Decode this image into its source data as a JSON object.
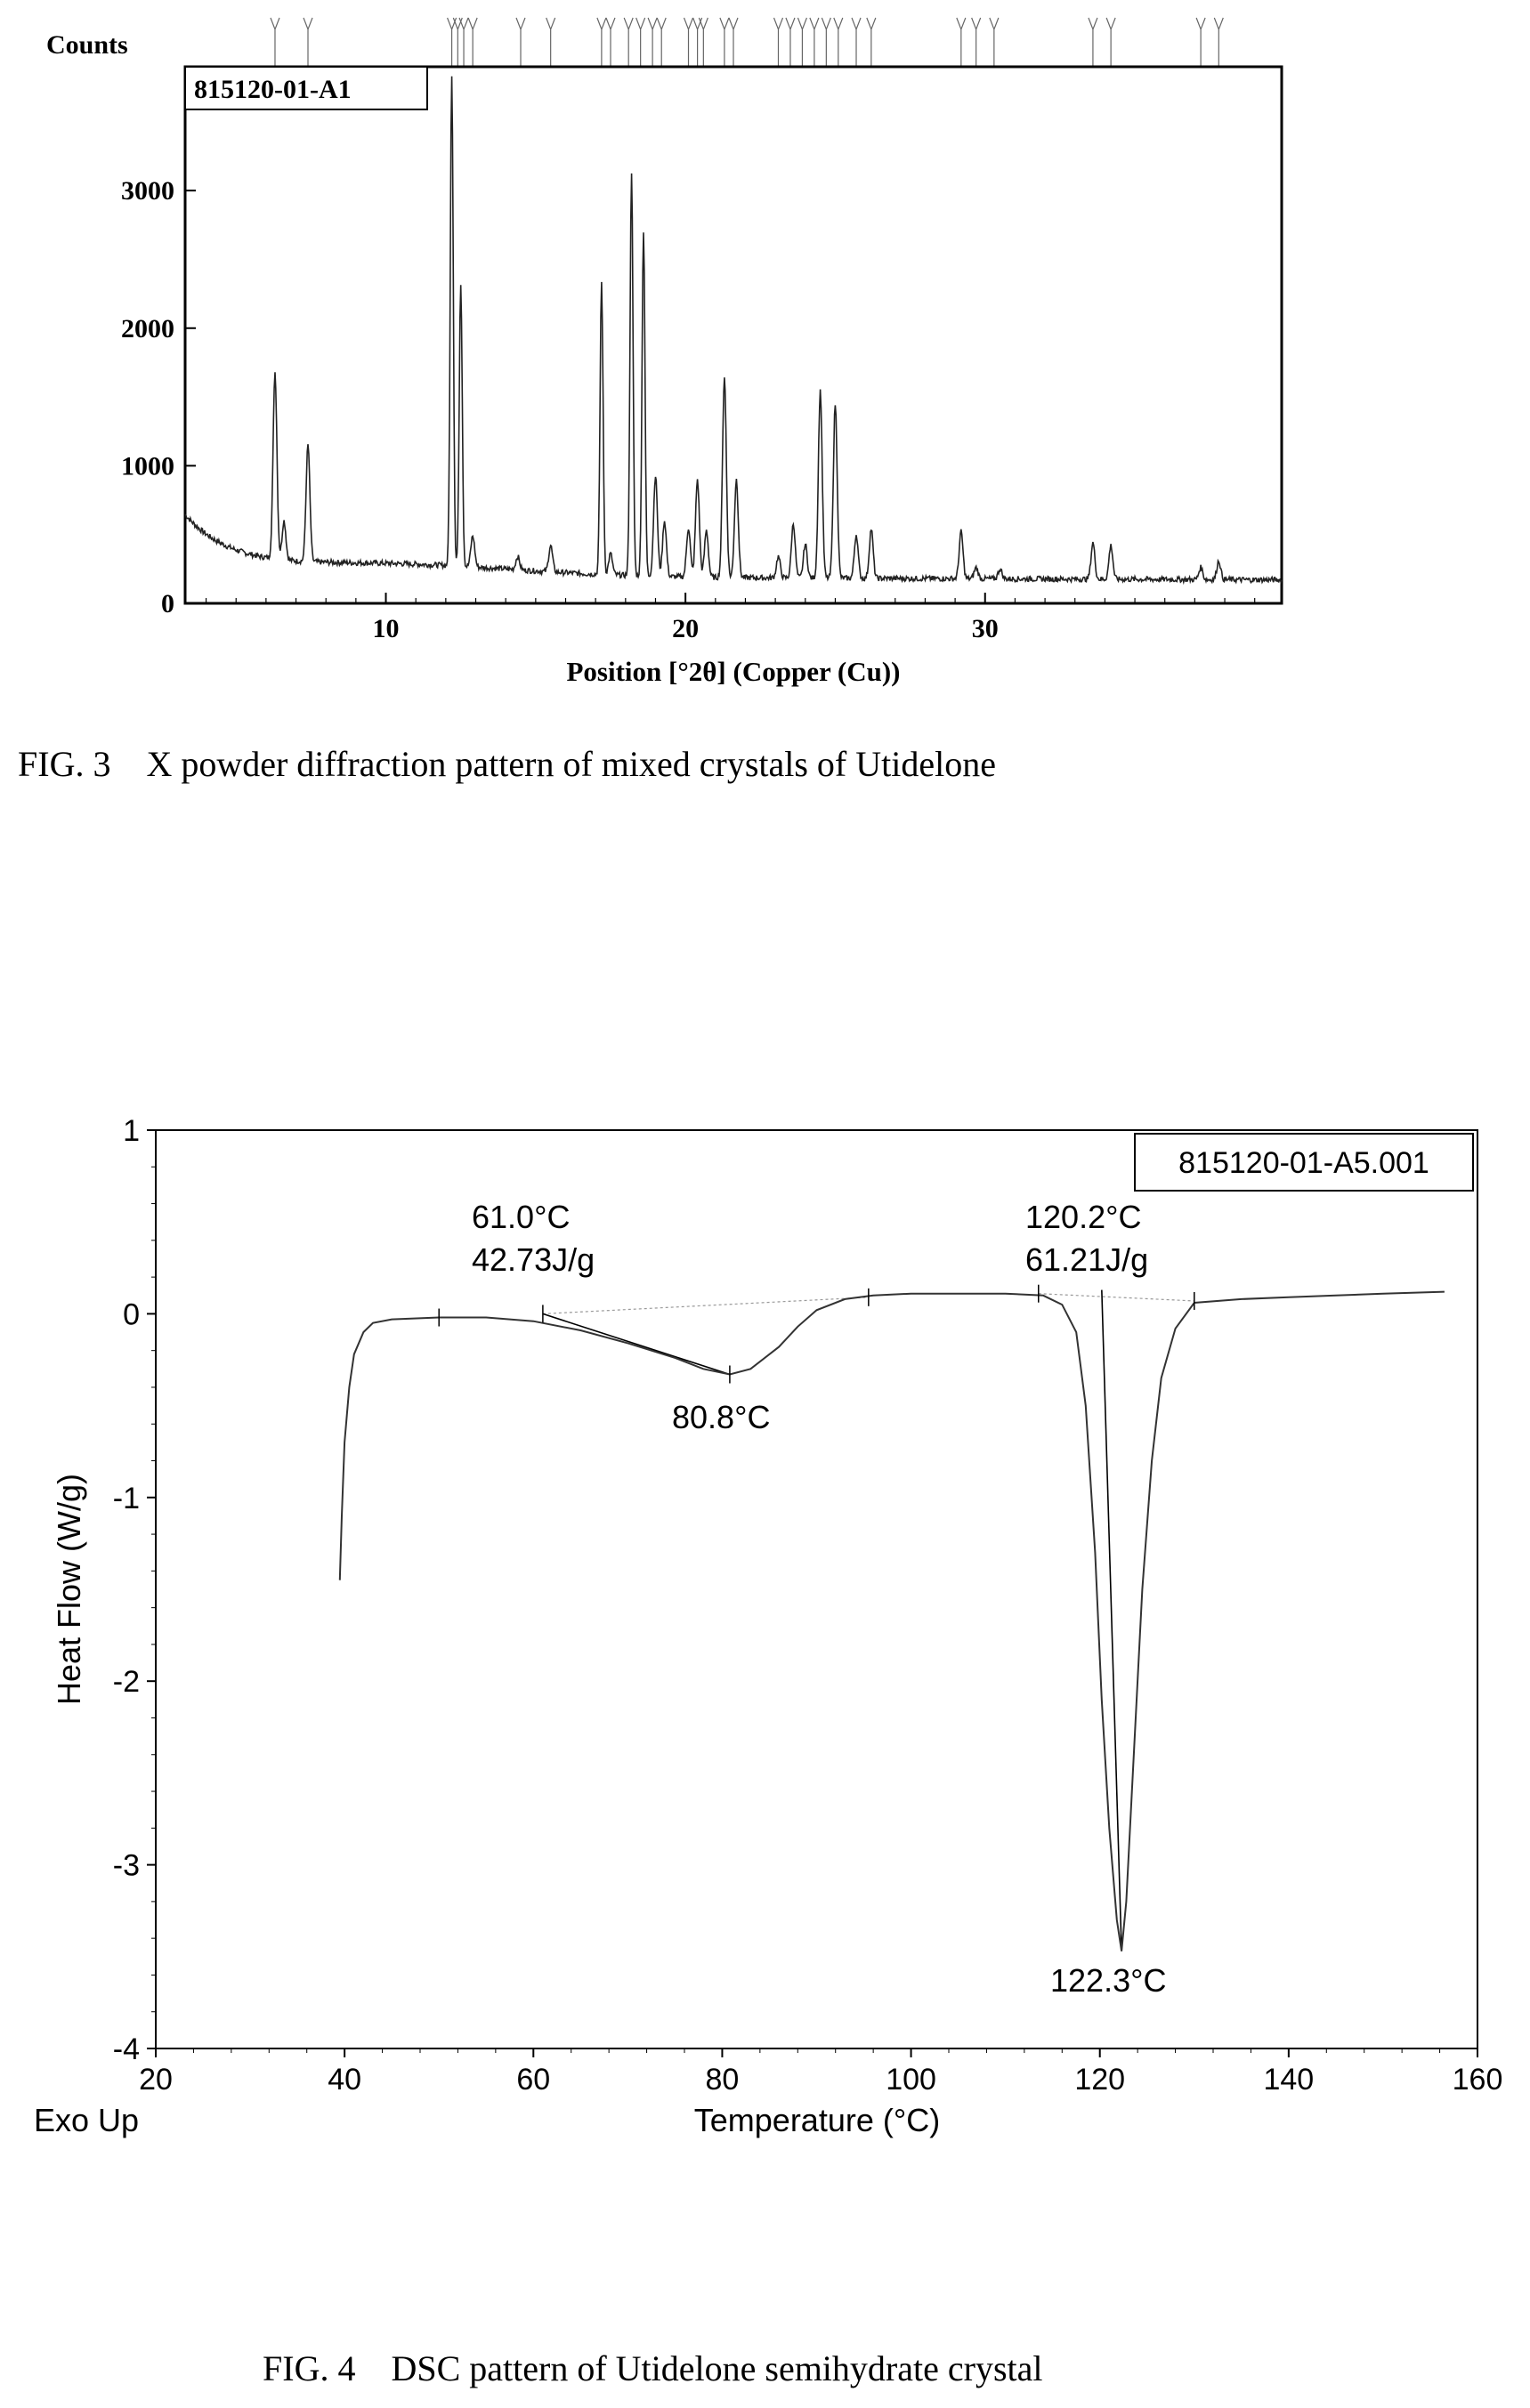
{
  "figure3": {
    "caption": "FIG. 3    X powder diffraction pattern of mixed crystals of Utidelone",
    "chart_data": {
      "type": "line",
      "ylabel": "Counts",
      "xlabel": "Position [°2θ] (Copper (Cu))",
      "sample_label": "815120-01-A1",
      "xlim": [
        3.3,
        39.9
      ],
      "ylim": [
        0,
        3900
      ],
      "xticks": [
        10,
        20,
        30
      ],
      "yticks": [
        0,
        1000,
        2000,
        3000
      ],
      "peaks": [
        {
          "x": 6.3,
          "y": 1680
        },
        {
          "x": 6.6,
          "y": 600
        },
        {
          "x": 7.4,
          "y": 1150
        },
        {
          "x": 12.2,
          "y": 3850
        },
        {
          "x": 12.5,
          "y": 2330
        },
        {
          "x": 12.9,
          "y": 490
        },
        {
          "x": 14.4,
          "y": 340
        },
        {
          "x": 15.5,
          "y": 420
        },
        {
          "x": 17.2,
          "y": 2330
        },
        {
          "x": 17.5,
          "y": 360
        },
        {
          "x": 18.2,
          "y": 3140
        },
        {
          "x": 18.6,
          "y": 2710
        },
        {
          "x": 19.0,
          "y": 930
        },
        {
          "x": 19.3,
          "y": 600
        },
        {
          "x": 20.1,
          "y": 550
        },
        {
          "x": 20.4,
          "y": 900
        },
        {
          "x": 20.7,
          "y": 530
        },
        {
          "x": 21.3,
          "y": 1650
        },
        {
          "x": 21.7,
          "y": 900
        },
        {
          "x": 23.1,
          "y": 340
        },
        {
          "x": 23.6,
          "y": 580
        },
        {
          "x": 24.0,
          "y": 430
        },
        {
          "x": 24.5,
          "y": 1540
        },
        {
          "x": 25.0,
          "y": 1450
        },
        {
          "x": 25.7,
          "y": 500
        },
        {
          "x": 26.2,
          "y": 540
        },
        {
          "x": 29.2,
          "y": 520
        },
        {
          "x": 29.7,
          "y": 260
        },
        {
          "x": 30.5,
          "y": 250
        },
        {
          "x": 33.6,
          "y": 440
        },
        {
          "x": 34.2,
          "y": 420
        },
        {
          "x": 37.2,
          "y": 260
        },
        {
          "x": 37.8,
          "y": 310
        }
      ],
      "reference_markers": [
        6.3,
        7.4,
        12.2,
        12.4,
        12.6,
        12.9,
        14.5,
        15.5,
        17.2,
        17.5,
        18.1,
        18.5,
        18.9,
        19.2,
        20.1,
        20.4,
        20.6,
        21.3,
        21.6,
        23.1,
        23.5,
        23.9,
        24.3,
        24.7,
        25.1,
        25.7,
        26.2,
        29.2,
        29.7,
        30.3,
        33.6,
        34.2,
        37.2,
        37.8
      ]
    }
  },
  "figure4": {
    "caption": "FIG. 4    DSC pattern of Utidelone semihydrate crystal",
    "chart_data": {
      "type": "line",
      "ylabel": "Heat Flow (W/g)",
      "xlabel": "Temperature (°C)",
      "corner_label": "Exo Up",
      "sample_label": "815120-01-A5.001",
      "xlim": [
        20,
        160
      ],
      "ylim": [
        -4,
        1
      ],
      "xticks": [
        20,
        40,
        60,
        80,
        100,
        120,
        140,
        160
      ],
      "yticks": [
        1,
        0,
        -1,
        -2,
        -3,
        -4
      ],
      "series": [
        {
          "x": [
            39.5,
            39.7,
            40.0,
            40.5,
            41.0,
            42.0,
            43.0,
            45.0,
            50.0,
            55.0,
            60.0,
            65.0,
            70.0,
            75.0,
            78.0,
            80.8,
            83.0,
            86.0,
            88.0,
            90.0,
            93.0,
            96.0,
            100.0,
            105.0,
            110.0,
            114.0,
            116.0,
            117.5,
            118.5,
            119.5,
            120.2,
            121.0,
            121.8,
            122.3,
            122.8,
            123.5,
            124.5,
            125.5,
            126.5,
            128.0,
            130.0,
            135.0,
            140.0,
            145.0,
            150.0,
            156.5
          ],
          "y": [
            -1.45,
            -1.1,
            -0.7,
            -0.4,
            -0.22,
            -0.1,
            -0.05,
            -0.03,
            -0.02,
            -0.02,
            -0.04,
            -0.09,
            -0.16,
            -0.24,
            -0.3,
            -0.33,
            -0.3,
            -0.18,
            -0.07,
            0.02,
            0.08,
            0.1,
            0.11,
            0.11,
            0.11,
            0.1,
            0.05,
            -0.1,
            -0.5,
            -1.3,
            -2.1,
            -2.8,
            -3.3,
            -3.47,
            -3.2,
            -2.5,
            -1.5,
            -0.8,
            -0.35,
            -0.08,
            0.06,
            0.08,
            0.09,
            0.1,
            0.11,
            0.12
          ]
        }
      ],
      "annotations": [
        {
          "line1": "61.0°C",
          "line2": "42.73J/g"
        },
        {
          "line1": "80.8°C"
        },
        {
          "line1": "120.2°C",
          "line2": "61.21J/g"
        },
        {
          "line1": "122.3°C"
        }
      ]
    }
  }
}
